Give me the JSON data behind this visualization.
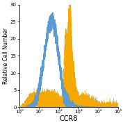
{
  "title": "",
  "xlabel": "CCR8",
  "ylabel": "Relative Cell Number",
  "ylim": [
    0,
    30
  ],
  "yticks": [
    0,
    5,
    10,
    15,
    20,
    25,
    30
  ],
  "ytick_labels": [
    "0",
    "5",
    "10",
    "15",
    "20",
    "25",
    "30"
  ],
  "xtick_positions": [
    1.0,
    10.0,
    100.0,
    1000.0,
    10000.0,
    100000.0
  ],
  "xtick_labels": [
    "10⁰",
    "10¹",
    "10²",
    "10³",
    "10⁴",
    "10⁵"
  ],
  "filled_color": "#F5A800",
  "open_color": "#5B9BD5",
  "background_color": "#ffffff",
  "xlabel_fontsize": 7,
  "ylabel_fontsize": 5.5,
  "tick_fontsize": 5
}
